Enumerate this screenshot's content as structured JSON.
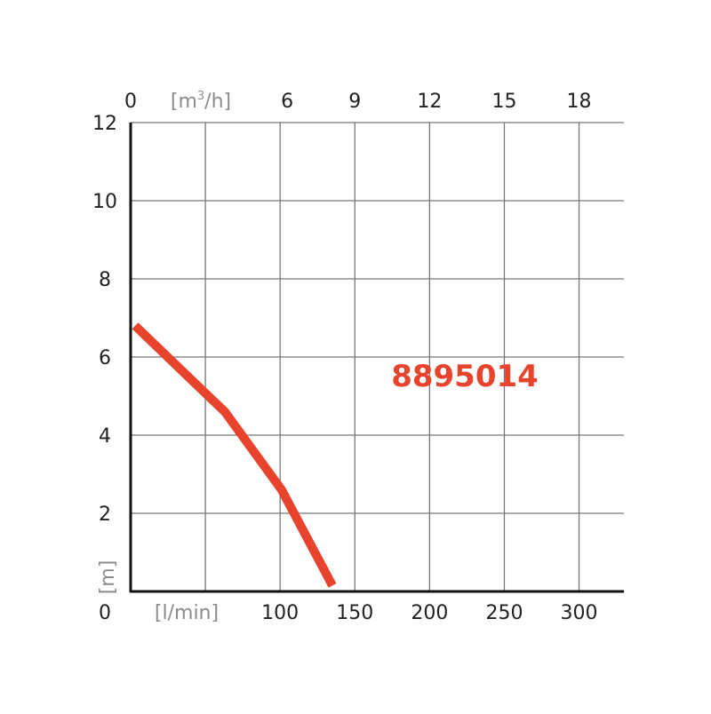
{
  "chart_data": {
    "type": "line",
    "title": "",
    "annotation": "8895014",
    "xlabel": "[l/min]",
    "x2label_base": "[m",
    "x2label_sup": "3",
    "x2label_tail": "/h]",
    "ylabel": "[m]",
    "xlim": [
      0,
      330
    ],
    "ylim": [
      0,
      12
    ],
    "grid": true,
    "x_ticks": [
      0,
      50,
      100,
      150,
      200,
      250,
      300
    ],
    "x_tick_labels": [
      "0",
      "",
      "100",
      "150",
      "200",
      "250",
      "300"
    ],
    "x2_ticks": [
      0,
      50,
      100,
      150,
      200,
      250,
      300
    ],
    "x2_tick_labels": [
      "0",
      "",
      "6",
      "9",
      "12",
      "15",
      "18"
    ],
    "y_ticks": [
      0,
      2,
      4,
      6,
      8,
      10,
      12
    ],
    "y_tick_labels": [
      "0",
      "2",
      "4",
      "6",
      "8",
      "10",
      "12"
    ],
    "series": [
      {
        "x": [
          3,
          52,
          63,
          101,
          135
        ],
        "y": [
          6.8,
          5.0,
          4.6,
          2.6,
          0.15
        ],
        "color": "#e8432d"
      }
    ],
    "colors": {
      "curve": "#e8432d",
      "annotation": "#e8432d",
      "unit_labels": "#8c8c8c",
      "tick_labels": "#222222",
      "grid": "#666666"
    }
  }
}
